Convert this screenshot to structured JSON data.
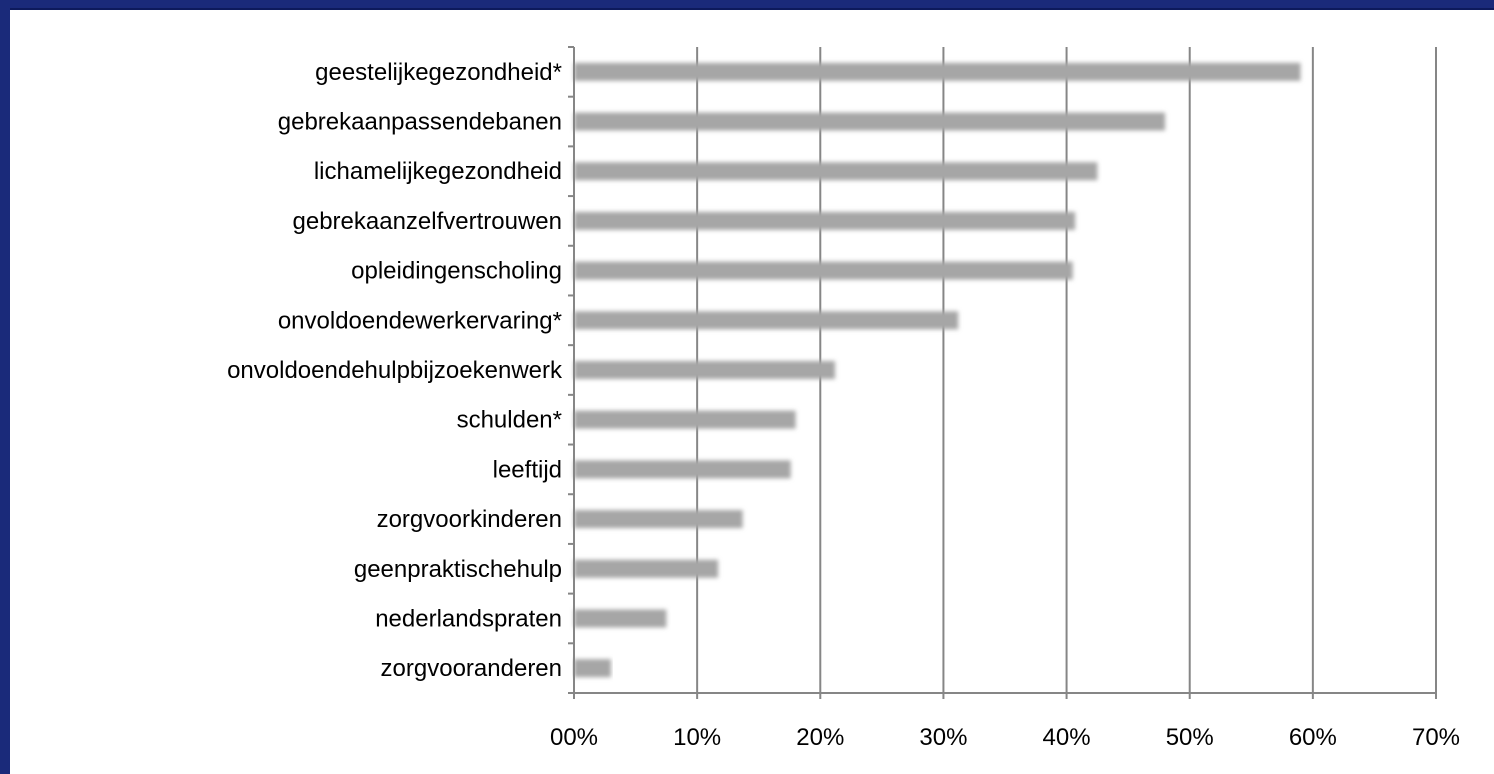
{
  "chart_data": {
    "type": "bar",
    "orientation": "horizontal",
    "categories": [
      "geestelijke\u0001gezondheid*\u0001",
      "gebrek\u0001aan\u0001passende\u0001banen\u0001",
      "lichamelijke\u0001gezondheid\u0001",
      "gebrek\u0001aan\u0001zelfvertrouwen\u0001",
      "opleiding\u0001en\u0001scholing\u0001",
      "onvoldoende\u0001werkervaring*\u0001",
      "onvoldoende\u0001hulp\u0001bij\u0001zoeken\u0001werk\u0001",
      "schulden*\u0001",
      "leeftijd\u0001",
      "zorg\u0001voor\u0001kinderen\u0001",
      "geen\u0001praktische\u0001hulp\u0001",
      "nederlands\u0001praten\u0001",
      "zorg\u0001voor\u0001anderen\u0001"
    ],
    "values": [
      59,
      48,
      42.5,
      40.7,
      40.5,
      31.2,
      21.2,
      18,
      17.6,
      13.7,
      11.7,
      7.5,
      3
    ],
    "xlim": [
      0,
      70
    ],
    "ticks": [
      0,
      10,
      20,
      30,
      40,
      50,
      60,
      70
    ],
    "tick_labels": [
      "00%\u0001",
      "10%\u0001",
      "20%\u0001",
      "30%\u0001",
      "40%\u0001",
      "50%\u0001",
      "60%\u0001",
      "70%\u0001"
    ],
    "grid": "vertical",
    "bar_color": "#a6a6a6",
    "gridline_color": "#868686",
    "frame_color": "#1a2a7a"
  }
}
